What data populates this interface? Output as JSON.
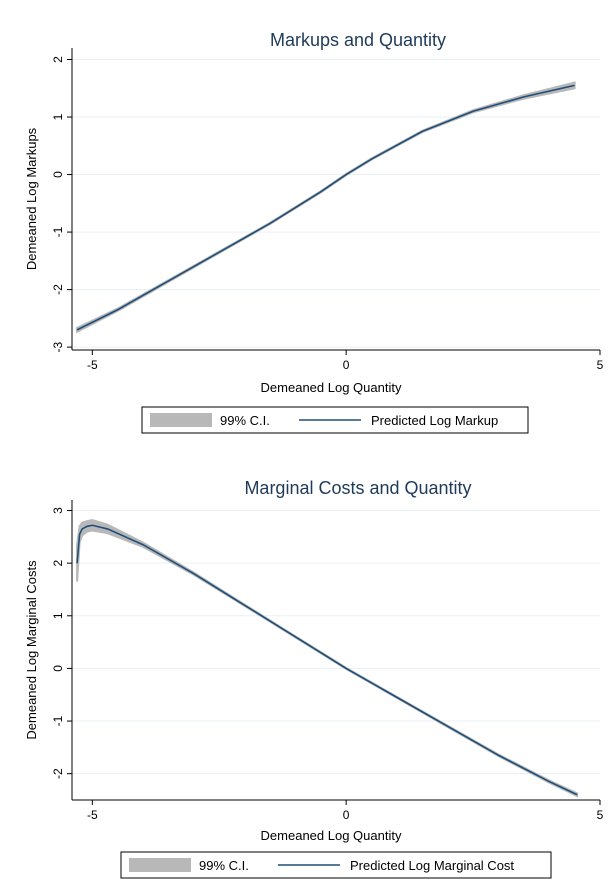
{
  "chart_data": [
    {
      "type": "line",
      "title": "Markups and Quantity",
      "xlabel": "Demeaned Log Quantity",
      "ylabel": "Demeaned Log Markups",
      "xlim": [
        -5.4,
        5.0
      ],
      "ylim": [
        -3.05,
        2.2
      ],
      "xticks": [
        -5,
        0,
        5
      ],
      "xtick_labels": [
        "-5",
        "0",
        "5"
      ],
      "yticks": [
        -3,
        -2,
        -1,
        0,
        1,
        2
      ],
      "ytick_labels": [
        "-3",
        "-2",
        "-1",
        "0",
        "1",
        "2"
      ],
      "grid": true,
      "legend_position": "bottom",
      "series": [
        {
          "name": "Predicted Log Markup",
          "x": [
            -5.3,
            -4.5,
            -3.5,
            -2.5,
            -1.5,
            -0.5,
            0.0,
            0.5,
            1.5,
            2.5,
            3.5,
            4.5
          ],
          "y": [
            -2.7,
            -2.35,
            -1.85,
            -1.35,
            -0.85,
            -0.3,
            0.0,
            0.27,
            0.75,
            1.1,
            1.35,
            1.55
          ],
          "ci_halfwidth": [
            0.035,
            0.02,
            0.015,
            0.012,
            0.01,
            0.01,
            0.01,
            0.01,
            0.012,
            0.018,
            0.03,
            0.05
          ]
        }
      ],
      "legend": [
        "99% C.I.",
        "Predicted Log Markup"
      ]
    },
    {
      "type": "line",
      "title": "Marginal Costs and Quantity",
      "xlabel": "Demeaned Log Quantity",
      "ylabel": "Demeaned Log Marginal Costs",
      "xlim": [
        -5.4,
        5.0
      ],
      "ylim": [
        -2.5,
        3.2
      ],
      "xticks": [
        -5,
        0,
        5
      ],
      "xtick_labels": [
        "-5",
        "0",
        "5"
      ],
      "yticks": [
        -2,
        -1,
        0,
        1,
        2,
        3
      ],
      "ytick_labels": [
        "-2",
        "-1",
        "0",
        "1",
        "2",
        "3"
      ],
      "grid": true,
      "legend_position": "bottom",
      "series": [
        {
          "name": "Predicted Log Marginal Cost",
          "x": [
            -5.3,
            -5.25,
            -5.2,
            -5.1,
            -5.0,
            -4.7,
            -4.0,
            -3.0,
            -2.0,
            -1.0,
            0.0,
            1.0,
            2.0,
            3.0,
            4.0,
            4.55
          ],
          "y": [
            2.0,
            2.55,
            2.65,
            2.7,
            2.72,
            2.65,
            2.35,
            1.8,
            1.2,
            0.6,
            0.0,
            -0.55,
            -1.1,
            -1.65,
            -2.15,
            -2.4
          ],
          "ci_halfwidth": [
            0.35,
            0.15,
            0.12,
            0.1,
            0.1,
            0.08,
            0.04,
            0.02,
            0.012,
            0.01,
            0.01,
            0.01,
            0.012,
            0.015,
            0.02,
            0.025
          ]
        }
      ],
      "legend": [
        "99% C.I.",
        "Predicted Log Marginal Cost"
      ]
    }
  ]
}
